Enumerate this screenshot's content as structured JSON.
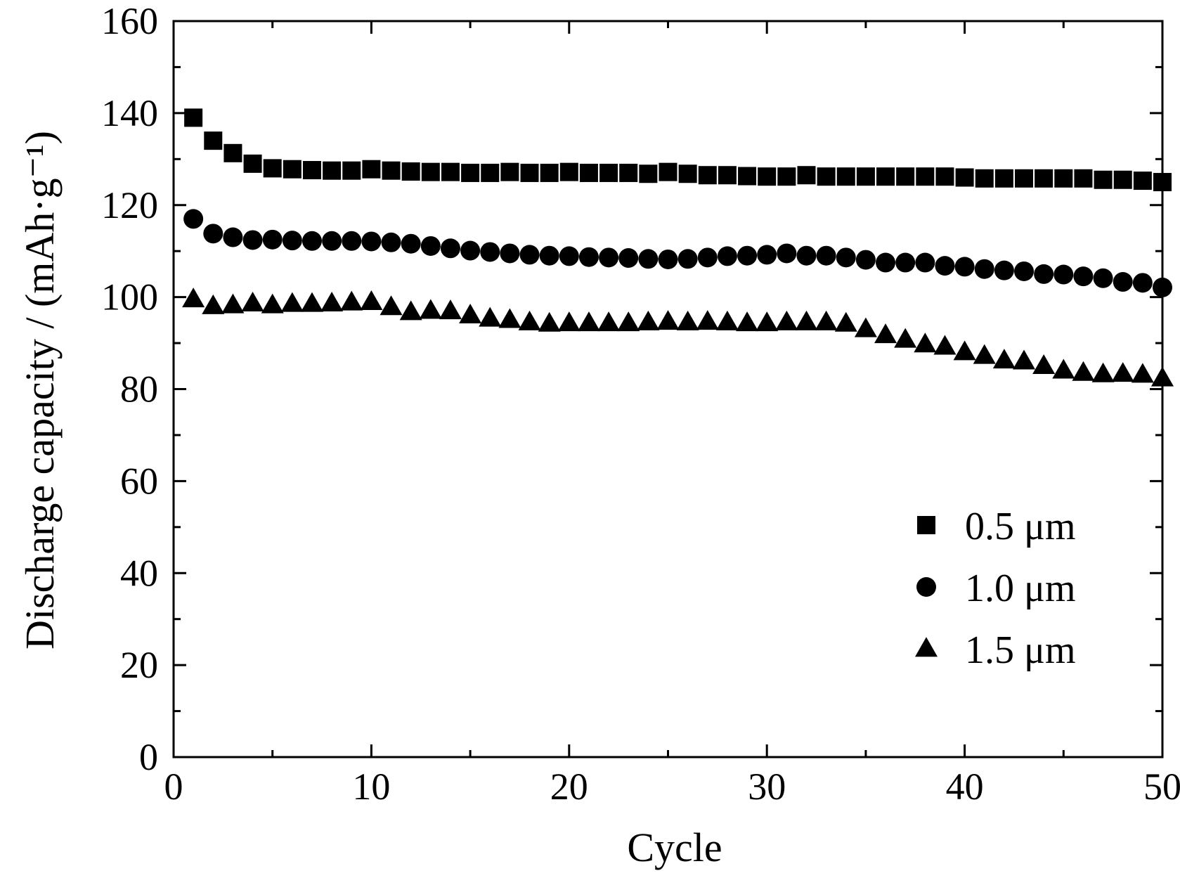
{
  "chart_data": {
    "type": "scatter",
    "xlabel": "Cycle",
    "ylabel": "Discharge capacity / (mAh·g⁻¹)",
    "xlim": [
      0,
      50
    ],
    "ylim": [
      0,
      160
    ],
    "xticks": [
      "0",
      "10",
      "20",
      "30",
      "40",
      "50"
    ],
    "yticks": [
      "0",
      "20",
      "40",
      "60",
      "80",
      "100",
      "120",
      "140",
      "160"
    ],
    "grid": false,
    "legend_position": "bottom-right",
    "x": [
      1,
      2,
      3,
      4,
      5,
      6,
      7,
      8,
      9,
      10,
      11,
      12,
      13,
      14,
      15,
      16,
      17,
      18,
      19,
      20,
      21,
      22,
      23,
      24,
      25,
      26,
      27,
      28,
      29,
      30,
      31,
      32,
      33,
      34,
      35,
      36,
      37,
      38,
      39,
      40,
      41,
      42,
      43,
      44,
      45,
      46,
      47,
      48,
      49,
      50
    ],
    "series": [
      {
        "name": "0.5 μm",
        "marker": "square",
        "values": [
          139,
          134,
          131.3,
          129,
          128,
          127.8,
          127.6,
          127.5,
          127.5,
          127.8,
          127.5,
          127.3,
          127.2,
          127.2,
          127,
          127,
          127.2,
          127,
          127,
          127.2,
          127,
          127,
          127,
          126.8,
          127.2,
          126.8,
          126.5,
          126.5,
          126.3,
          126.2,
          126.2,
          126.5,
          126.2,
          126.2,
          126.2,
          126.2,
          126.2,
          126.2,
          126.2,
          126,
          125.8,
          125.8,
          125.8,
          125.8,
          125.8,
          125.8,
          125.5,
          125.5,
          125.3,
          125
        ]
      },
      {
        "name": "1.0 μm",
        "marker": "circle",
        "values": [
          117,
          113.8,
          113,
          112.4,
          112.5,
          112.3,
          112.2,
          112.2,
          112.2,
          112.1,
          111.9,
          111.6,
          111.1,
          110.6,
          110.1,
          109.8,
          109.5,
          109.2,
          109,
          108.9,
          108.7,
          108.6,
          108.5,
          108.3,
          108.2,
          108.3,
          108.6,
          108.9,
          109,
          109.2,
          109.5,
          109,
          109,
          108.6,
          108.1,
          107.5,
          107.5,
          107.5,
          106.8,
          106.6,
          106.1,
          105.8,
          105.6,
          105,
          104.9,
          104.5,
          104.1,
          103.3,
          103.1,
          102.1
        ]
      },
      {
        "name": "1.5 μm",
        "marker": "triangle",
        "values": [
          99.5,
          98,
          98.2,
          98.6,
          98.2,
          98.5,
          98.5,
          98.6,
          98.8,
          98.9,
          97.8,
          96.7,
          97,
          96.9,
          96,
          95.3,
          95,
          94.5,
          94.2,
          94.3,
          94.3,
          94.3,
          94.3,
          94.5,
          94.6,
          94.5,
          94.6,
          94.5,
          94.3,
          94.3,
          94.5,
          94.5,
          94.5,
          94.2,
          93,
          91.7,
          90.7,
          89.7,
          89.2,
          88,
          87.2,
          86.2,
          86,
          85,
          84,
          83.5,
          83.2,
          83.3,
          83.1,
          82.3
        ]
      }
    ]
  }
}
